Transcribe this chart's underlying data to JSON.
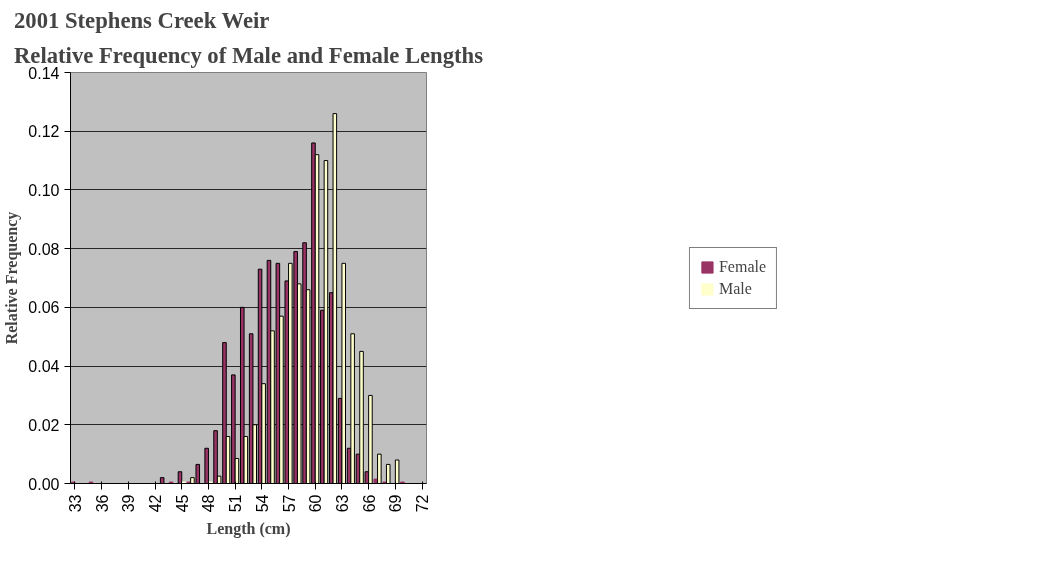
{
  "chart_data": {
    "type": "bar",
    "title": "2001 Stephens Creek Weir\nRelative Frequency of Male and Female Lengths",
    "xlabel": "Length (cm)",
    "ylabel": "Relative Frequency",
    "categories": [
      "33",
      null,
      null,
      "36",
      null,
      null,
      "39",
      null,
      null,
      "42",
      null,
      null,
      "45",
      null,
      null,
      "48",
      null,
      null,
      "51",
      null,
      null,
      "54",
      null,
      null,
      "57",
      null,
      null,
      "60",
      null,
      null,
      "63",
      null,
      null,
      "66",
      null,
      null,
      "69",
      null,
      null,
      "72"
    ],
    "series": [
      {
        "name": "Female",
        "color": "#993366",
        "values": [
          0.0005,
          0,
          0.0005,
          0,
          0,
          0,
          0,
          0,
          0,
          0,
          0.002,
          0.0005,
          0.004,
          0.0005,
          0.0065,
          0.012,
          0.018,
          0.048,
          0.037,
          0.06,
          0.051,
          0.073,
          0.076,
          0.075,
          0.069,
          0.079,
          0.082,
          0.116,
          0.059,
          0.065,
          0.029,
          0.012,
          0.01,
          0.004,
          0.0015,
          0.0005,
          0,
          0.0005,
          0,
          0
        ]
      },
      {
        "name": "Male",
        "color": "#ffffcc",
        "values": [
          0,
          0,
          0,
          0,
          0,
          0,
          0,
          0,
          0,
          0,
          0,
          0,
          0.0005,
          0.002,
          0,
          0.0005,
          0.0025,
          0.016,
          0.0085,
          0.016,
          0.02,
          0.034,
          0.052,
          0.057,
          0.075,
          0.068,
          0.066,
          0.112,
          0.11,
          0.126,
          0.075,
          0.051,
          0.045,
          0.03,
          0.01,
          0.0065,
          0.008,
          0,
          0,
          0
        ]
      }
    ],
    "ylim": [
      0,
      0.14
    ],
    "yticks": [
      {
        "value": 0,
        "label": "0.00"
      },
      {
        "value": 0.02,
        "label": "0.02"
      },
      {
        "value": 0.04,
        "label": "0.04"
      },
      {
        "value": 0.06,
        "label": "0.06"
      },
      {
        "value": 0.08,
        "label": "0.08"
      },
      {
        "value": 0.1,
        "label": "0.10"
      },
      {
        "value": 0.12,
        "label": "0.12"
      },
      {
        "value": 0.14,
        "label": "0.14"
      }
    ],
    "grid": "y",
    "legend": "right"
  }
}
